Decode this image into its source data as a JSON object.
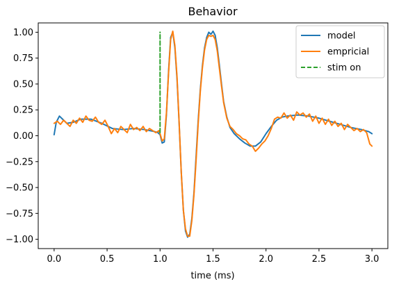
{
  "chart_data": {
    "type": "line",
    "title": "Behavior",
    "xlabel": "time (ms)",
    "ylabel": "",
    "xlim": [
      -0.15,
      3.15
    ],
    "ylim": [
      -1.09,
      1.09
    ],
    "xticks": [
      "0.0",
      "0.5",
      "1.0",
      "1.5",
      "2.0",
      "2.5",
      "3.0"
    ],
    "yticks": [
      "-1.00",
      "-0.75",
      "-0.50",
      "-0.25",
      "0.00",
      "0.25",
      "0.50",
      "0.75",
      "1.00"
    ],
    "xtick_values": [
      0,
      0.5,
      1.0,
      1.5,
      2.0,
      2.5,
      3.0
    ],
    "ytick_values": [
      -1.0,
      -0.75,
      -0.5,
      -0.25,
      0.0,
      0.25,
      0.5,
      0.75,
      1.0
    ],
    "legend_position": "top-right",
    "grid": false,
    "series": [
      {
        "name": "model",
        "color": "#1f77b4",
        "style": "solid",
        "x": [
          0.0,
          0.02,
          0.05,
          0.08,
          0.12,
          0.18,
          0.25,
          0.35,
          0.45,
          0.55,
          0.65,
          0.75,
          0.85,
          0.95,
          0.98,
          1.0,
          1.02,
          1.04,
          1.06,
          1.08,
          1.1,
          1.12,
          1.14,
          1.16,
          1.18,
          1.2,
          1.22,
          1.24,
          1.26,
          1.28,
          1.3,
          1.32,
          1.34,
          1.36,
          1.38,
          1.4,
          1.42,
          1.44,
          1.46,
          1.48,
          1.5,
          1.52,
          1.54,
          1.56,
          1.58,
          1.6,
          1.63,
          1.66,
          1.7,
          1.75,
          1.8,
          1.85,
          1.9,
          1.95,
          2.0,
          2.05,
          2.1,
          2.15,
          2.2,
          2.3,
          2.4,
          2.5,
          2.6,
          2.7,
          2.8,
          2.9,
          2.97,
          3.0
        ],
        "y": [
          0.01,
          0.13,
          0.19,
          0.16,
          0.12,
          0.13,
          0.16,
          0.16,
          0.12,
          0.07,
          0.06,
          0.07,
          0.06,
          0.04,
          0.03,
          0.01,
          -0.07,
          -0.06,
          0.2,
          0.62,
          0.95,
          1.0,
          0.85,
          0.55,
          0.12,
          -0.35,
          -0.72,
          -0.92,
          -0.98,
          -0.95,
          -0.8,
          -0.55,
          -0.2,
          0.15,
          0.45,
          0.68,
          0.85,
          0.95,
          1.0,
          0.98,
          1.01,
          0.97,
          0.85,
          0.68,
          0.5,
          0.33,
          0.18,
          0.08,
          0.02,
          -0.03,
          -0.07,
          -0.1,
          -0.1,
          -0.06,
          0.02,
          0.09,
          0.15,
          0.18,
          0.19,
          0.2,
          0.19,
          0.17,
          0.14,
          0.11,
          0.08,
          0.06,
          0.04,
          0.02
        ]
      },
      {
        "name": "empricial",
        "color": "#ff7f0e",
        "style": "solid",
        "x": [
          0.0,
          0.03,
          0.06,
          0.09,
          0.12,
          0.15,
          0.18,
          0.21,
          0.24,
          0.27,
          0.3,
          0.33,
          0.36,
          0.39,
          0.42,
          0.45,
          0.48,
          0.51,
          0.54,
          0.57,
          0.6,
          0.63,
          0.66,
          0.69,
          0.72,
          0.75,
          0.78,
          0.81,
          0.84,
          0.87,
          0.9,
          0.93,
          0.96,
          0.99,
          1.0,
          1.02,
          1.04,
          1.06,
          1.08,
          1.1,
          1.12,
          1.14,
          1.16,
          1.18,
          1.2,
          1.22,
          1.24,
          1.26,
          1.28,
          1.3,
          1.32,
          1.34,
          1.36,
          1.38,
          1.4,
          1.42,
          1.44,
          1.46,
          1.48,
          1.5,
          1.52,
          1.54,
          1.56,
          1.58,
          1.6,
          1.63,
          1.66,
          1.69,
          1.72,
          1.75,
          1.78,
          1.81,
          1.84,
          1.87,
          1.9,
          1.93,
          1.96,
          1.99,
          2.02,
          2.05,
          2.08,
          2.11,
          2.14,
          2.17,
          2.2,
          2.23,
          2.26,
          2.29,
          2.32,
          2.35,
          2.38,
          2.41,
          2.44,
          2.47,
          2.5,
          2.53,
          2.56,
          2.59,
          2.62,
          2.65,
          2.68,
          2.71,
          2.74,
          2.77,
          2.8,
          2.83,
          2.86,
          2.89,
          2.92,
          2.95,
          2.98,
          3.0
        ],
        "y": [
          0.12,
          0.14,
          0.11,
          0.15,
          0.12,
          0.09,
          0.15,
          0.12,
          0.17,
          0.13,
          0.19,
          0.15,
          0.14,
          0.18,
          0.13,
          0.11,
          0.15,
          0.09,
          0.02,
          0.07,
          0.03,
          0.09,
          0.06,
          0.03,
          0.11,
          0.06,
          0.08,
          0.05,
          0.09,
          0.04,
          0.07,
          0.05,
          0.03,
          0.05,
          0.02,
          -0.05,
          -0.03,
          0.22,
          0.6,
          0.93,
          1.01,
          0.87,
          0.57,
          0.13,
          -0.35,
          -0.72,
          -0.9,
          -0.97,
          -0.97,
          -0.82,
          -0.57,
          -0.24,
          0.12,
          0.43,
          0.66,
          0.83,
          0.93,
          0.97,
          0.96,
          0.97,
          0.93,
          0.82,
          0.65,
          0.48,
          0.32,
          0.17,
          0.09,
          0.06,
          0.02,
          0.0,
          -0.03,
          -0.04,
          -0.08,
          -0.1,
          -0.15,
          -0.12,
          -0.08,
          -0.05,
          0.0,
          0.07,
          0.16,
          0.18,
          0.17,
          0.22,
          0.17,
          0.2,
          0.15,
          0.23,
          0.2,
          0.22,
          0.18,
          0.21,
          0.14,
          0.19,
          0.12,
          0.17,
          0.11,
          0.16,
          0.1,
          0.14,
          0.09,
          0.12,
          0.06,
          0.11,
          0.08,
          0.05,
          0.07,
          0.04,
          0.06,
          0.03,
          -0.08,
          -0.1
        ]
      },
      {
        "name": "stim on",
        "color": "#2ca02c",
        "style": "dashed",
        "x": [
          1.0,
          1.0
        ],
        "y": [
          0.03,
          1.0
        ]
      }
    ]
  }
}
